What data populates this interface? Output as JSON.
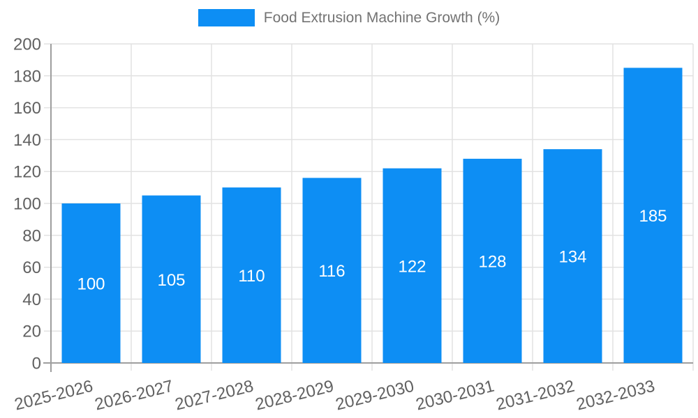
{
  "legend": {
    "label": "Food Extrusion Machine Growth (%)"
  },
  "chart_data": {
    "type": "bar",
    "title": "Food Extrusion Machine Growth (%)",
    "categories": [
      "2025-2026",
      "2026-2027",
      "2027-2028",
      "2028-2029",
      "2029-2030",
      "2030-2031",
      "2031-2032",
      "2032-2033"
    ],
    "values": [
      100,
      105,
      110,
      116,
      122,
      128,
      134,
      185
    ],
    "xlabel": "",
    "ylabel": "",
    "ylim": [
      0,
      200
    ],
    "ytick_step": 20,
    "yticks": [
      0,
      20,
      40,
      60,
      80,
      100,
      120,
      140,
      160,
      180,
      200
    ],
    "grid": true,
    "legend_position": "top",
    "bar_value_labels": [
      "100",
      "105",
      "110",
      "116",
      "122",
      "128",
      "134",
      "185"
    ],
    "x_label_rotation_deg": -14,
    "colors": {
      "bar": "#0d8ef4",
      "grid": "#e2e2e2",
      "axis": "#9e9e9e",
      "tick_label": "#616161",
      "legend_text": "#737373",
      "bar_label": "#ffffff",
      "background": "#ffffff"
    }
  }
}
